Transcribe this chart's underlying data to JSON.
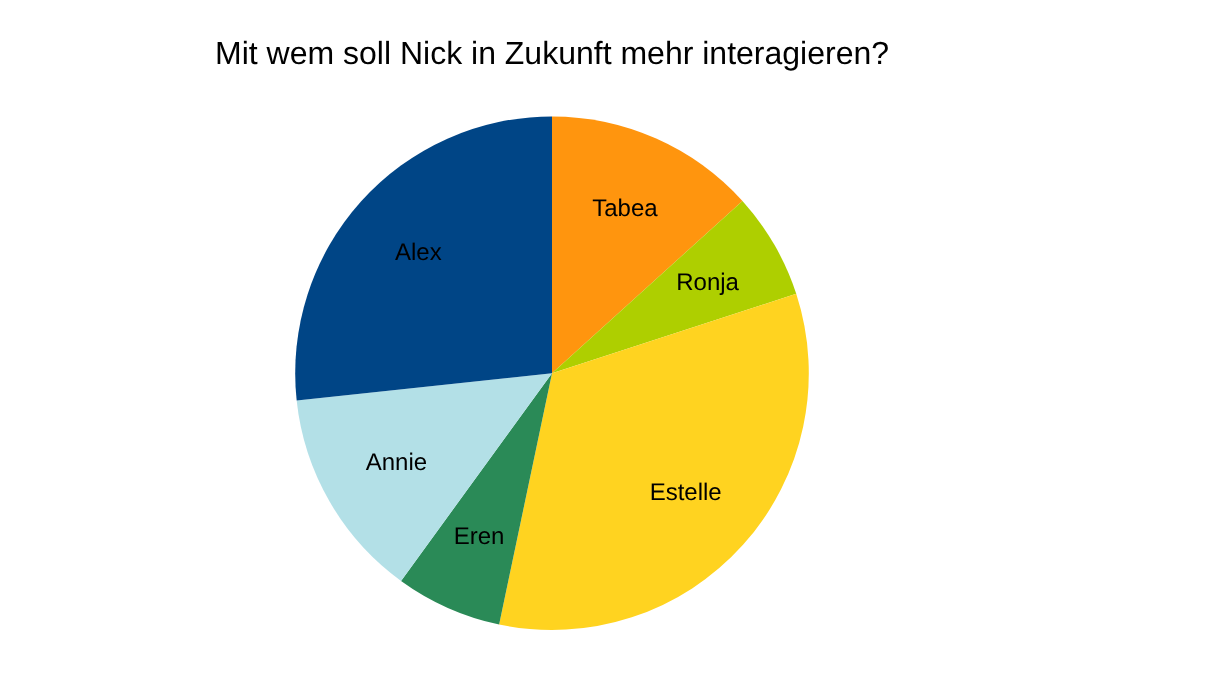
{
  "chart_data": {
    "type": "pie",
    "title": "Mit wem soll Nick in Zukunft mehr interagieren?",
    "categories": [
      "Tabea",
      "Ronja",
      "Estelle",
      "Eren",
      "Annie",
      "Alex"
    ],
    "values": [
      13.3,
      6.7,
      33.3,
      6.7,
      13.3,
      26.7
    ],
    "colors": [
      "#ff950e",
      "#aecf00",
      "#ffd320",
      "#2a8a57",
      "#b3e0e7",
      "#004586"
    ],
    "legend": false
  }
}
